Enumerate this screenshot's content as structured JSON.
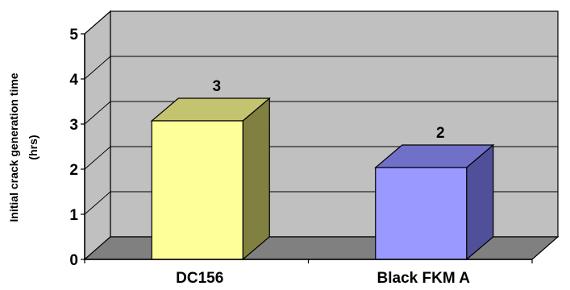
{
  "chart_data": {
    "type": "bar",
    "style": "3d-column",
    "categories": [
      "DC156",
      "Black FKM A"
    ],
    "values": [
      3,
      2
    ],
    "data_labels": [
      "3",
      "2"
    ],
    "ylabel_lines": [
      "Initial crack generation time",
      "(hrs)"
    ],
    "xlabel": "",
    "title": "",
    "ylim": [
      0,
      5
    ],
    "yticks": [
      "0",
      "1",
      "2",
      "3",
      "4",
      "5"
    ],
    "grid": true,
    "legend": "none",
    "colors": {
      "wall": "#c0c0c0",
      "floor": "#808080",
      "gridline": "#000000",
      "bars": [
        {
          "front": "#ffff99",
          "side": "#808040",
          "top": "#c4c470"
        },
        {
          "front": "#9999ff",
          "side": "#50509a",
          "top": "#7070c8"
        }
      ]
    }
  }
}
